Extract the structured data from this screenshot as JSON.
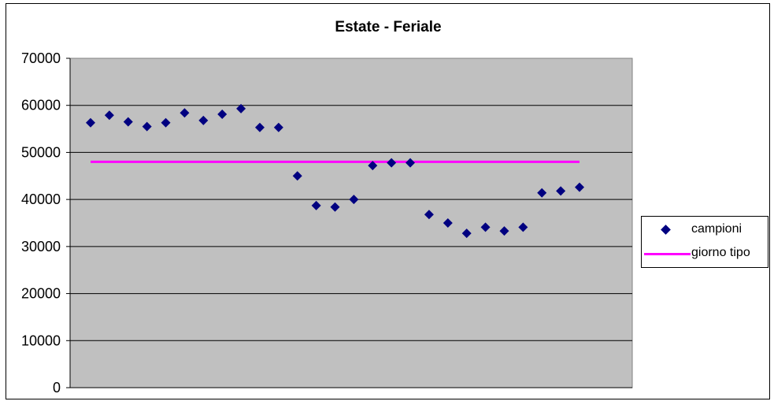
{
  "chart_data": {
    "type": "scatter",
    "title": "Estate - Feriale",
    "ylim": [
      0,
      70000
    ],
    "yticks": [
      "0",
      "10000",
      "20000",
      "30000",
      "40000",
      "50000",
      "60000",
      "70000"
    ],
    "grid": true,
    "legend_position": "right",
    "plot_background": "#c0c0c0",
    "x": [
      1,
      2,
      3,
      4,
      5,
      6,
      7,
      8,
      9,
      10,
      11,
      12,
      13,
      14,
      15,
      16,
      17,
      18,
      19,
      20,
      21,
      22,
      23,
      24,
      25,
      26,
      27
    ],
    "series": [
      {
        "name": "campioni",
        "kind": "scatter",
        "marker": "diamond",
        "color": "#000080",
        "values": [
          56300,
          57900,
          56500,
          55500,
          56300,
          58400,
          56800,
          58100,
          59300,
          55300,
          55300,
          45000,
          38700,
          38400,
          40000,
          47200,
          47800,
          47800,
          36800,
          35000,
          32800,
          34100,
          33300,
          34100,
          41400,
          41800,
          42600
        ]
      },
      {
        "name": "giorno tipo",
        "kind": "line",
        "color": "#ff00ff",
        "values": [
          48000,
          48000,
          48000,
          48000,
          48000,
          48000,
          48000,
          48000,
          48000,
          48000,
          48000,
          48000,
          48000,
          48000,
          48000,
          48000,
          48000,
          48000,
          48000,
          48000,
          48000,
          48000,
          48000,
          48000,
          48000,
          48000,
          48000
        ]
      }
    ]
  }
}
